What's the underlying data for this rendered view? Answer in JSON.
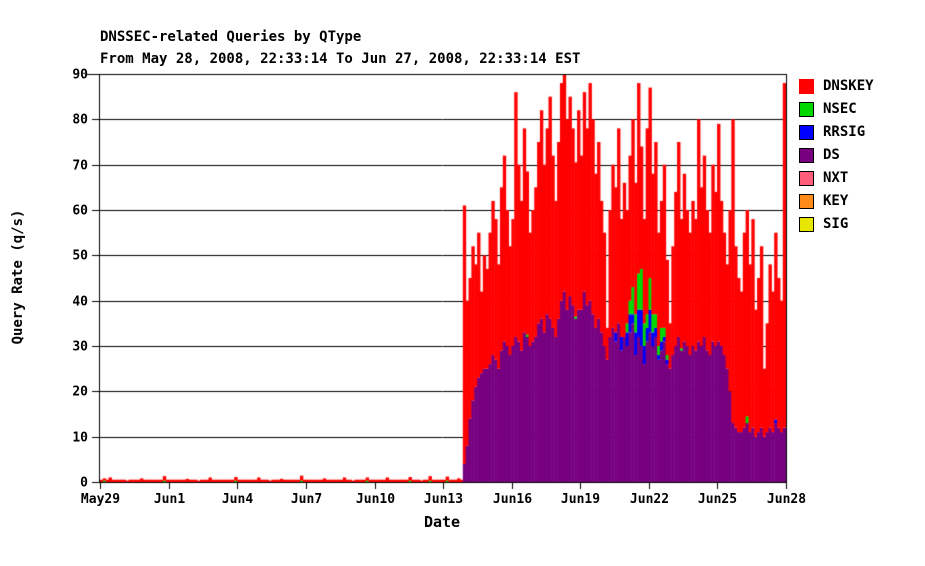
{
  "chart_data": {
    "type": "bar",
    "stacked": true,
    "title": "DNSSEC-related Queries by QType",
    "subtitle": "From May 28, 2008, 22:33:14 To Jun 27, 2008, 22:33:14 EST",
    "xlabel": "Date",
    "ylabel": "Query Rate (q/s)",
    "ylim": [
      0,
      90
    ],
    "y_ticks": [
      0,
      10,
      20,
      30,
      40,
      50,
      60,
      70,
      80,
      90
    ],
    "x_tick_labels": [
      "May29",
      "Jun1",
      "Jun4",
      "Jun7",
      "Jun10",
      "Jun13",
      "Jun16",
      "Jun19",
      "Jun22",
      "Jun25",
      "Jun28"
    ],
    "x_tick_positions_days": [
      0.06,
      3.06,
      6.06,
      9.06,
      12.06,
      15.06,
      18.06,
      21.06,
      24.06,
      27.06,
      30.06
    ],
    "x_range_days": [
      0,
      30.06
    ],
    "grid": "horizontal",
    "legend_position": "right",
    "sample_count": 240,
    "samples_per_day": 8,
    "stack_order": [
      "SIG",
      "KEY",
      "NXT",
      "DS",
      "RRSIG",
      "NSEC",
      "DNSKEY"
    ],
    "legend": [
      {
        "label": "DNSKEY",
        "color": "#ff0000"
      },
      {
        "label": "NSEC",
        "color": "#00d800"
      },
      {
        "label": "RRSIG",
        "color": "#0000ff"
      },
      {
        "label": "DS",
        "color": "#770080"
      },
      {
        "label": "NXT",
        "color": "#ff5e7a"
      },
      {
        "label": "KEY",
        "color": "#ff8c1a"
      },
      {
        "label": "SIG",
        "color": "#e6e600"
      }
    ],
    "series": [
      {
        "name": "DNSKEY",
        "color": "#ff0000",
        "values_rle": [
          [
            3,
            0.5
          ],
          1,
          [
            5,
            0.5
          ],
          0.3,
          [
            4,
            0.5
          ],
          0.8,
          [
            7,
            0.5
          ],
          1,
          [
            7,
            0.5
          ],
          0.7,
          [
            3,
            0.5
          ],
          0.3,
          [
            3,
            0.5
          ],
          1,
          [
            8,
            0.5
          ],
          0.8,
          [
            7,
            0.5
          ],
          1,
          [
            3,
            0.5
          ],
          0.3,
          [
            3,
            0.5
          ],
          0.7,
          [
            6,
            0.5
          ],
          1.1,
          [
            7,
            0.5
          ],
          0.8,
          [
            6,
            0.5
          ],
          1,
          [
            2,
            0.5
          ],
          0.3,
          [
            4,
            0.5
          ],
          0.7,
          [
            6,
            0.5
          ],
          1,
          [
            7,
            0.5
          ],
          0.8,
          [
            3,
            0.5
          ],
          0.3,
          [
            2,
            0.5
          ],
          1,
          [
            5,
            0.5
          ],
          0.9,
          [
            3,
            0.5
          ],
          0.8,
          [
            1,
            0.5
          ],
          57,
          32,
          31,
          34,
          27,
          32,
          18,
          25,
          22,
          29,
          34,
          31,
          23,
          36,
          41,
          30,
          24,
          28,
          54,
          39,
          33,
          45,
          36,
          25,
          29,
          33,
          40,
          46,
          37,
          41,
          49,
          38,
          30,
          39,
          48,
          48,
          42,
          44,
          39,
          34,
          44,
          34,
          44,
          39,
          48,
          43,
          34,
          39,
          29,
          25,
          7,
          28,
          36,
          32,
          43,
          26,
          34,
          25,
          32,
          37,
          29,
          42,
          27,
          23,
          41,
          42,
          31,
          38,
          25,
          28,
          36,
          21,
          10,
          24,
          34,
          43,
          28.5,
          37,
          30,
          27,
          32,
          29,
          49,
          35,
          40,
          31,
          27,
          39,
          34,
          48,
          32,
          27,
          23,
          40,
          67,
          40,
          34,
          31,
          43,
          45.5,
          37,
          46,
          28,
          34,
          40,
          15,
          24,
          36,
          31,
          41.2,
          33,
          29,
          76
        ]
      },
      {
        "name": "NSEC",
        "color": "#00d800",
        "values_sparse": {
          "1": 0.3,
          "22": 0.3,
          "47": 0.3,
          "70": 0.3,
          "93": 0.3,
          "108": 0.3,
          "115": 0.3,
          "121": 0.3,
          "149": 0.5,
          "166": 0.5,
          "184": 2,
          "185": 3,
          "186": 6,
          "187": 4,
          "188": 8,
          "189": 9,
          "190": 5,
          "191": 3,
          "192": 7,
          "193": 4,
          "194": 3,
          "195": 2,
          "196": 3,
          "197": 2,
          "198": 1,
          "203": 0.5,
          "226": 1.5
        }
      },
      {
        "name": "RRSIG",
        "color": "#0000ff",
        "values_sparse": {
          "180": 2,
          "182": 3,
          "184": 3,
          "185": 4,
          "186": 2,
          "187": 5,
          "188": 6,
          "189": 8,
          "190": 4,
          "191": 3,
          "192": 5,
          "193": 3,
          "194": 2,
          "195": 1,
          "196": 2,
          "197": 1,
          "198": 1,
          "236": 0.8
        }
      },
      {
        "name": "DS",
        "color": "#770080",
        "values_rle": [
          [
            127,
            0
          ],
          4,
          8,
          14,
          18,
          21,
          23,
          24,
          25,
          25,
          26,
          28,
          27,
          25,
          29,
          31,
          30,
          28,
          30,
          32,
          31,
          29,
          33,
          32,
          30,
          31,
          32,
          35,
          36,
          33,
          37,
          36,
          34,
          32,
          36,
          40,
          42,
          38,
          41,
          39,
          36,
          38,
          38,
          42,
          39,
          40,
          37,
          34,
          36,
          33,
          30,
          27,
          32,
          34,
          31,
          35,
          29,
          32,
          30,
          33,
          35,
          28,
          32,
          30,
          26,
          31,
          33,
          30,
          32,
          27,
          29,
          31,
          26,
          25,
          28,
          30,
          32,
          29,
          31,
          30,
          28,
          30,
          29,
          31,
          30,
          32,
          29,
          28,
          31,
          30,
          31,
          30,
          28,
          25,
          20,
          13,
          12,
          11,
          11,
          12,
          13,
          11,
          12,
          10,
          11,
          12,
          10,
          11,
          12,
          11,
          13,
          12,
          11,
          12
        ]
      },
      {
        "name": "NXT",
        "color": "#ff5e7a",
        "values_constant": 0
      },
      {
        "name": "KEY",
        "color": "#ff8c1a",
        "values_constant": 0
      },
      {
        "name": "SIG",
        "color": "#e6e600",
        "values_constant": 0
      }
    ]
  }
}
